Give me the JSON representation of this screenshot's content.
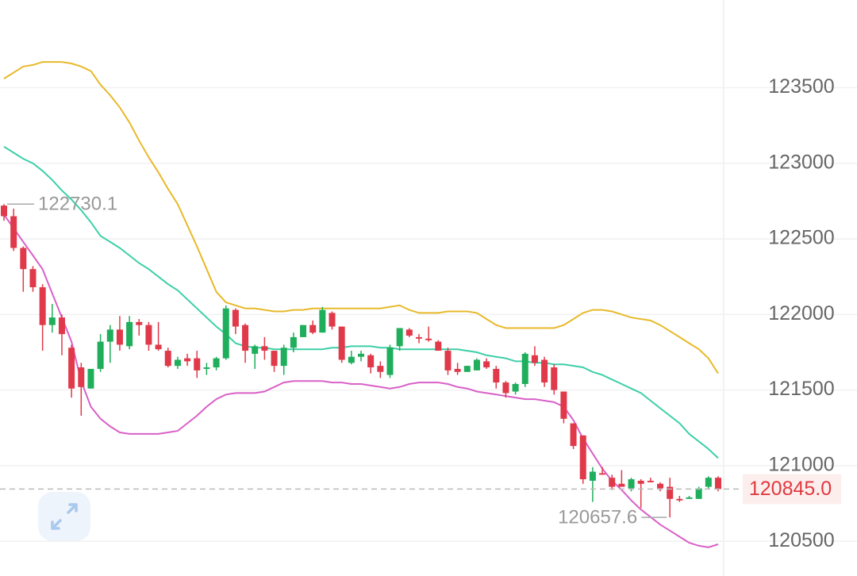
{
  "chart_data": {
    "type": "candlestick",
    "ylim": [
      120270,
      124080
    ],
    "yticks": [
      120500,
      121000,
      121500,
      122000,
      122500,
      123000,
      123500
    ],
    "grid": true,
    "up_color": "#1fae5b",
    "down_color": "#e0394a",
    "open": [
      122720,
      122650,
      122440,
      122300,
      122180,
      121930,
      121980,
      121780,
      121650,
      121510,
      121640,
      121820,
      121900,
      121790,
      121950,
      121930,
      121800,
      121760,
      121660,
      121710,
      121710,
      121640,
      121650,
      121710,
      122030,
      121930,
      121740,
      121790,
      121760,
      121660,
      121780,
      121850,
      121930,
      121880,
      122010,
      121920,
      121680,
      121720,
      121730,
      121660,
      121600,
      121790,
      121900,
      121850,
      121840,
      121820,
      121760,
      121640,
      121620,
      121630,
      121690,
      121640,
      121550,
      121490,
      121540,
      121730,
      121700,
      121650,
      121490,
      121280,
      121200,
      120900,
      120950,
      120920,
      120880,
      120850,
      120900,
      120900,
      120880,
      120860,
      120780,
      120780,
      120780,
      120860,
      120920
    ],
    "high": [
      122730.1,
      122700,
      122450,
      122320,
      122200,
      122070,
      122000,
      121800,
      121680,
      121640,
      121870,
      121930,
      121990,
      121990,
      121970,
      121950,
      121950,
      121780,
      121720,
      121740,
      121760,
      121680,
      121720,
      122060,
      122040,
      121940,
      121800,
      121850,
      121760,
      121800,
      121880,
      121930,
      121960,
      122050,
      122020,
      121920,
      121760,
      121760,
      121740,
      121690,
      121800,
      121910,
      121910,
      121870,
      121920,
      121830,
      121780,
      121680,
      121660,
      121710,
      121710,
      121660,
      121560,
      121550,
      121750,
      121790,
      121720,
      121670,
      121490,
      121280,
      121200,
      120990,
      120990,
      120940,
      120970,
      120920,
      120910,
      120920,
      120890,
      120920,
      120800,
      120800,
      120860,
      120930,
      120930
    ],
    "low": [
      122620,
      122420,
      122150,
      122150,
      121760,
      121880,
      121730,
      121450,
      121330,
      121510,
      121620,
      121680,
      121760,
      121770,
      121860,
      121760,
      121760,
      121650,
      121640,
      121660,
      121580,
      121600,
      121630,
      121700,
      121870,
      121680,
      121640,
      121700,
      121620,
      121600,
      121750,
      121850,
      121870,
      121880,
      121900,
      121680,
      121670,
      121690,
      121610,
      121580,
      121580,
      121760,
      121850,
      121810,
      121820,
      121760,
      121600,
      121600,
      121620,
      121630,
      121640,
      121510,
      121450,
      121470,
      121520,
      121660,
      121520,
      121470,
      121280,
      121110,
      120880,
      120760,
      120940,
      120840,
      120860,
      120830,
      120720,
      120890,
      120830,
      120657.6,
      120760,
      120780,
      120780,
      120850,
      120830
    ],
    "close": [
      122650,
      122440,
      122300,
      122180,
      121930,
      121980,
      121870,
      121510,
      121520,
      121640,
      121820,
      121900,
      121800,
      121950,
      121930,
      121800,
      121770,
      121660,
      121700,
      121690,
      121630,
      121650,
      121710,
      122040,
      121920,
      121760,
      121790,
      121760,
      121660,
      121780,
      121850,
      121930,
      121880,
      122030,
      121920,
      121700,
      121720,
      121740,
      121650,
      121620,
      121780,
      121910,
      121860,
      121840,
      121830,
      121760,
      121630,
      121620,
      121660,
      121700,
      121650,
      121550,
      121480,
      121540,
      121740,
      121680,
      121550,
      121500,
      121310,
      121130,
      120910,
      120960,
      120940,
      120860,
      120860,
      120910,
      120880,
      120890,
      120850,
      120780,
      120770,
      120790,
      120850,
      120920,
      120845
    ],
    "series": [
      {
        "color": "#e8b92a",
        "values": [
          123560,
          123600,
          123640,
          123650,
          123670,
          123670,
          123670,
          123660,
          123640,
          123610,
          123520,
          123450,
          123370,
          123270,
          123150,
          123040,
          122940,
          122830,
          122730,
          122590,
          122450,
          122300,
          122150,
          122080,
          122060,
          122040,
          122040,
          122030,
          122020,
          122020,
          122030,
          122030,
          122040,
          122040,
          122040,
          122040,
          122040,
          122040,
          122040,
          122040,
          122050,
          122060,
          122030,
          122010,
          122010,
          122010,
          122020,
          122020,
          122020,
          122010,
          121970,
          121930,
          121910,
          121910,
          121910,
          121910,
          121910,
          121910,
          121930,
          121970,
          122010,
          122030,
          122030,
          122020,
          122000,
          121980,
          121970,
          121960,
          121930,
          121890,
          121850,
          121810,
          121770,
          121710,
          121610
        ]
      },
      {
        "color": "#3dcfa8",
        "values": [
          123110,
          123070,
          123030,
          123000,
          122950,
          122890,
          122820,
          122760,
          122690,
          122610,
          122520,
          122480,
          122440,
          122390,
          122340,
          122300,
          122250,
          122200,
          122160,
          122100,
          122040,
          121980,
          121920,
          121870,
          121810,
          121790,
          121780,
          121780,
          121770,
          121770,
          121770,
          121770,
          121770,
          121770,
          121780,
          121780,
          121790,
          121790,
          121790,
          121780,
          121780,
          121770,
          121770,
          121770,
          121770,
          121770,
          121770,
          121770,
          121760,
          121750,
          121730,
          121720,
          121710,
          121690,
          121690,
          121680,
          121680,
          121670,
          121670,
          121660,
          121650,
          121620,
          121600,
          121570,
          121540,
          121510,
          121480,
          121430,
          121380,
          121330,
          121280,
          121210,
          121160,
          121110,
          121050
        ]
      },
      {
        "color": "#d960c8",
        "values": [
          122660,
          122570,
          122480,
          122390,
          122300,
          122140,
          121980,
          121820,
          121560,
          121390,
          121310,
          121260,
          121220,
          121210,
          121210,
          121210,
          121210,
          121220,
          121230,
          121280,
          121330,
          121390,
          121440,
          121470,
          121480,
          121480,
          121480,
          121490,
          121520,
          121550,
          121560,
          121560,
          121560,
          121560,
          121550,
          121550,
          121540,
          121540,
          121530,
          121520,
          121510,
          121520,
          121540,
          121550,
          121550,
          121550,
          121540,
          121520,
          121510,
          121490,
          121480,
          121470,
          121460,
          121450,
          121440,
          121440,
          121430,
          121420,
          121390,
          121300,
          121180,
          121080,
          120980,
          120900,
          120840,
          120770,
          120710,
          120660,
          120610,
          120570,
          120530,
          120490,
          120470,
          120460,
          120480
        ]
      }
    ],
    "annotations": [
      {
        "value": 122730.1,
        "label": "122730.1"
      },
      {
        "value": 120657.6,
        "label": "120657.6"
      }
    ],
    "last_price": {
      "value": 120845,
      "label": "120845.0"
    }
  }
}
